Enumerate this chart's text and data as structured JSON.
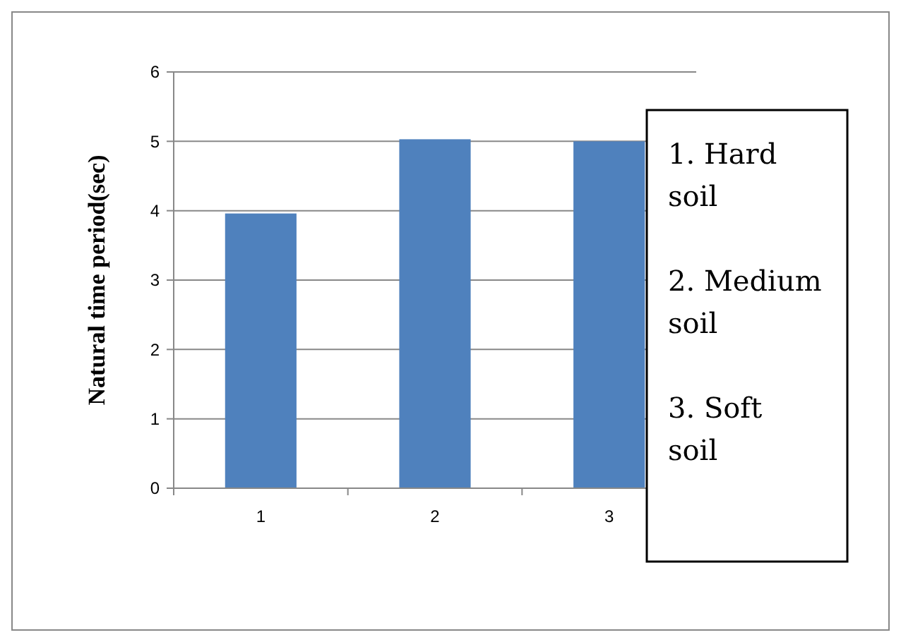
{
  "chart_data": {
    "type": "bar",
    "ylabel": "Natural time period(sec)",
    "categories": [
      "1",
      "2",
      "3"
    ],
    "values": [
      3.96,
      5.03,
      5.0
    ],
    "color": "#4f81bd",
    "ylim": [
      0,
      6
    ],
    "yticks": [
      0,
      1,
      2,
      3,
      4,
      5,
      6
    ],
    "grid": "y",
    "annotations": [
      "1. Hard soil",
      "2. Medium soil",
      "3. Soft soil"
    ]
  }
}
